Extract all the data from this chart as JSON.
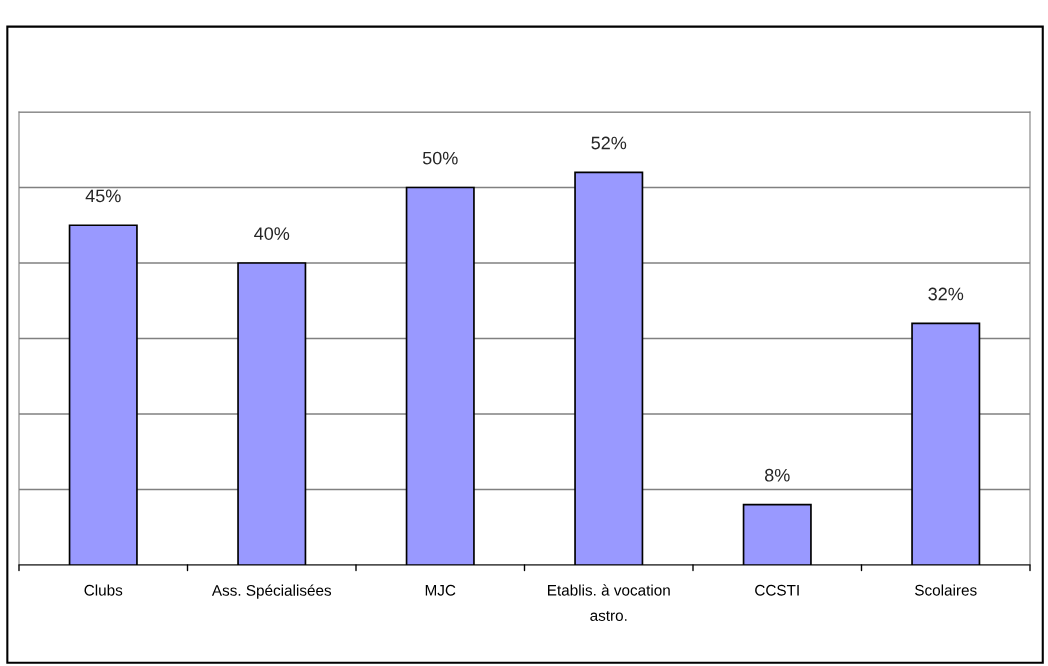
{
  "chart_data": {
    "type": "bar",
    "categories": [
      "Clubs",
      "Ass. Spécialisées",
      "MJC",
      "Etablis. à vocation\nastro.",
      "CCSTI",
      "Scolaires"
    ],
    "values": [
      45,
      40,
      50,
      52,
      8,
      32
    ],
    "value_labels": [
      "45%",
      "40%",
      "50%",
      "52%",
      "8%",
      "32%"
    ],
    "color": "#9999ff",
    "ylim": [
      0,
      60
    ],
    "yticks": [
      {
        "value": 0,
        "label": null
      },
      {
        "value": 10,
        "label": null
      },
      {
        "value": 20,
        "label": null
      },
      {
        "value": 30,
        "label": null
      },
      {
        "value": 40,
        "label": null
      },
      {
        "value": 50,
        "label": null
      },
      {
        "value": 60,
        "label": null
      }
    ],
    "grid": "y",
    "tick_labels": "x"
  }
}
